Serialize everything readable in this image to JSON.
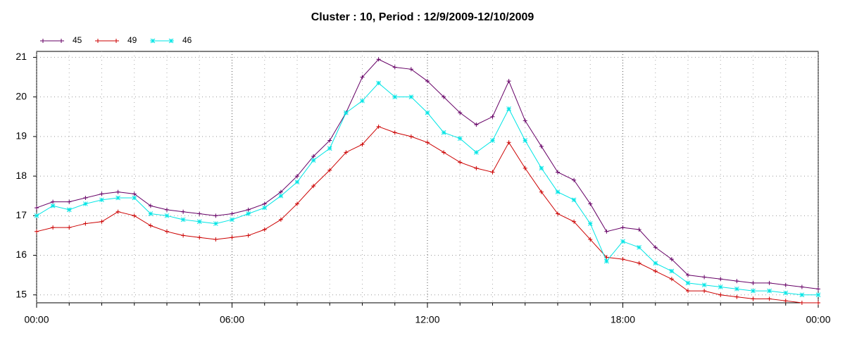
{
  "chart_data": {
    "type": "line",
    "title": "Cluster : 10, Period : 12/9/2009-12/10/2009",
    "x": [
      0,
      0.5,
      1,
      1.5,
      2,
      2.5,
      3,
      3.5,
      4,
      4.5,
      5,
      5.5,
      6,
      6.5,
      7,
      7.5,
      8,
      8.5,
      9,
      9.5,
      10,
      10.5,
      11,
      11.5,
      12,
      12.5,
      13,
      13.5,
      14,
      14.5,
      15,
      15.5,
      16,
      16.5,
      17,
      17.5,
      18,
      18.5,
      19,
      19.5,
      20,
      20.5,
      21,
      21.5,
      22,
      22.5,
      23,
      23.5,
      24
    ],
    "series": [
      {
        "name": "45",
        "color": "#660066",
        "marker": "plus",
        "values": [
          17.2,
          17.35,
          17.35,
          17.45,
          17.55,
          17.6,
          17.55,
          17.25,
          17.15,
          17.1,
          17.05,
          17.0,
          17.05,
          17.15,
          17.3,
          17.6,
          18.0,
          18.5,
          18.9,
          19.6,
          20.5,
          20.95,
          20.75,
          20.7,
          20.4,
          20.0,
          19.6,
          19.3,
          19.5,
          20.4,
          19.4,
          18.75,
          18.1,
          17.9,
          17.3,
          16.6,
          16.7,
          16.65,
          16.2,
          15.9,
          15.5,
          15.45,
          15.4,
          15.35,
          15.3,
          15.3,
          15.25,
          15.2,
          15.15
        ]
      },
      {
        "name": "49",
        "color": "#cc0000",
        "marker": "plus",
        "values": [
          16.6,
          16.7,
          16.7,
          16.8,
          16.85,
          17.1,
          17.0,
          16.75,
          16.6,
          16.5,
          16.45,
          16.4,
          16.45,
          16.5,
          16.65,
          16.9,
          17.3,
          17.75,
          18.15,
          18.6,
          18.8,
          19.25,
          19.1,
          19.0,
          18.85,
          18.6,
          18.35,
          18.2,
          18.1,
          18.85,
          18.2,
          17.6,
          17.05,
          16.85,
          16.4,
          15.95,
          15.9,
          15.8,
          15.6,
          15.4,
          15.1,
          15.1,
          15.0,
          14.95,
          14.9,
          14.9,
          14.85,
          14.8,
          14.8
        ]
      },
      {
        "name": "46",
        "color": "#00e5e5",
        "marker": "star",
        "values": [
          17.0,
          17.25,
          17.15,
          17.3,
          17.4,
          17.45,
          17.45,
          17.05,
          17.0,
          16.9,
          16.85,
          16.8,
          16.9,
          17.05,
          17.2,
          17.5,
          17.85,
          18.4,
          18.7,
          19.6,
          19.9,
          20.35,
          20.0,
          20.0,
          19.6,
          19.1,
          18.95,
          18.6,
          18.9,
          19.7,
          18.9,
          18.2,
          17.6,
          17.4,
          16.8,
          15.85,
          16.35,
          16.2,
          15.8,
          15.6,
          15.3,
          15.25,
          15.2,
          15.15,
          15.1,
          15.1,
          15.05,
          15.0,
          15.0
        ]
      }
    ],
    "xlim": [
      0,
      24
    ],
    "xticks": [
      {
        "value": 0,
        "label": "00:00"
      },
      {
        "value": 6,
        "label": "06:00"
      },
      {
        "value": 12,
        "label": "12:00"
      },
      {
        "value": 18,
        "label": "18:00"
      },
      {
        "value": 24,
        "label": "00:00"
      }
    ],
    "xminorticks": [
      1,
      2,
      3,
      4,
      5,
      7,
      8,
      9,
      10,
      11,
      13,
      14,
      15,
      16,
      17,
      19,
      20,
      21,
      22,
      23
    ],
    "ylim": [
      14.8,
      21.15
    ],
    "yticks": [
      15,
      16,
      17,
      18,
      19,
      20,
      21
    ],
    "grid": true
  }
}
